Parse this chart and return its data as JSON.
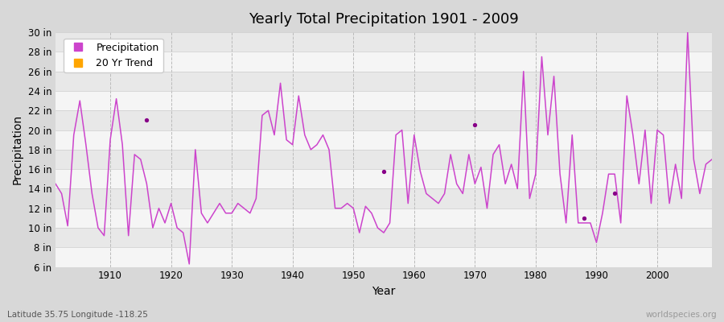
{
  "title": "Yearly Total Precipitation 1901 - 2009",
  "xlabel": "Year",
  "ylabel": "Precipitation",
  "subtitle": "Latitude 35.75 Longitude -118.25",
  "watermark": "worldspecies.org",
  "ylim": [
    6,
    30
  ],
  "yticks": [
    6,
    8,
    10,
    12,
    14,
    16,
    18,
    20,
    22,
    24,
    26,
    28,
    30
  ],
  "ytick_labels": [
    "6 in",
    "8 in",
    "10 in",
    "12 in",
    "14 in",
    "16 in",
    "18 in",
    "20 in",
    "22 in",
    "24 in",
    "26 in",
    "28 in",
    "30 in"
  ],
  "xticks": [
    1910,
    1920,
    1930,
    1940,
    1950,
    1960,
    1970,
    1980,
    1990,
    2000
  ],
  "line_color": "#CC44CC",
  "scatter_color": "#880088",
  "trend_color": "#FFA500",
  "bg_color": "#f0f0f0",
  "plot_bg_light": "#f5f5f5",
  "plot_bg_dark": "#e8e8e8",
  "grid_color_v": "#cccccc",
  "legend_bg": "#ffffff",
  "years": [
    1901,
    1902,
    1903,
    1904,
    1905,
    1906,
    1907,
    1908,
    1909,
    1910,
    1911,
    1912,
    1913,
    1914,
    1915,
    1916,
    1917,
    1918,
    1919,
    1920,
    1921,
    1922,
    1923,
    1924,
    1925,
    1926,
    1927,
    1928,
    1929,
    1930,
    1931,
    1932,
    1933,
    1934,
    1935,
    1936,
    1937,
    1938,
    1939,
    1940,
    1941,
    1942,
    1943,
    1944,
    1945,
    1946,
    1947,
    1948,
    1949,
    1950,
    1951,
    1952,
    1953,
    1954,
    1955,
    1956,
    1957,
    1958,
    1959,
    1960,
    1961,
    1962,
    1963,
    1964,
    1965,
    1966,
    1967,
    1968,
    1969,
    1970,
    1971,
    1972,
    1973,
    1974,
    1975,
    1976,
    1977,
    1978,
    1979,
    1980,
    1981,
    1982,
    1983,
    1984,
    1985,
    1986,
    1987,
    1988,
    1989,
    1990,
    1991,
    1992,
    1993,
    1994,
    1995,
    1996,
    1997,
    1998,
    1999,
    2000,
    2001,
    2002,
    2003,
    2004,
    2005,
    2006,
    2007,
    2008,
    2009
  ],
  "precip": [
    14.5,
    13.5,
    10.2,
    19.5,
    23.0,
    18.5,
    13.5,
    10.0,
    9.2,
    19.0,
    23.2,
    18.5,
    9.2,
    17.5,
    17.0,
    14.5,
    10.0,
    12.0,
    10.5,
    12.5,
    10.0,
    9.5,
    6.3,
    18.0,
    11.5,
    10.5,
    11.5,
    12.5,
    11.5,
    11.5,
    12.5,
    12.0,
    11.5,
    13.0,
    21.5,
    22.0,
    19.5,
    24.8,
    19.0,
    18.5,
    23.5,
    19.5,
    18.0,
    18.5,
    19.5,
    18.0,
    12.0,
    12.0,
    12.5,
    12.0,
    9.5,
    12.2,
    11.5,
    10.0,
    9.5,
    10.5,
    19.5,
    20.0,
    12.5,
    19.5,
    15.8,
    13.5,
    13.0,
    12.5,
    13.5,
    17.5,
    14.5,
    13.5,
    17.5,
    14.5,
    16.2,
    12.0,
    17.5,
    18.5,
    14.5,
    16.5,
    14.0,
    26.0,
    13.0,
    15.5,
    27.5,
    19.5,
    25.5,
    15.5,
    10.5,
    19.5,
    10.5,
    10.5,
    10.5,
    8.5,
    11.5,
    15.5,
    15.5,
    10.5,
    23.5,
    19.5,
    14.5,
    20.0,
    12.5,
    20.0,
    19.5,
    12.5,
    16.5,
    13.0,
    30.0,
    17.0,
    13.5,
    16.5,
    17.0
  ],
  "isolated_dots": {
    "years": [
      1916,
      1955,
      1970,
      1988,
      1993
    ],
    "values": [
      21.0,
      15.8,
      20.5,
      11.0,
      13.5
    ]
  }
}
